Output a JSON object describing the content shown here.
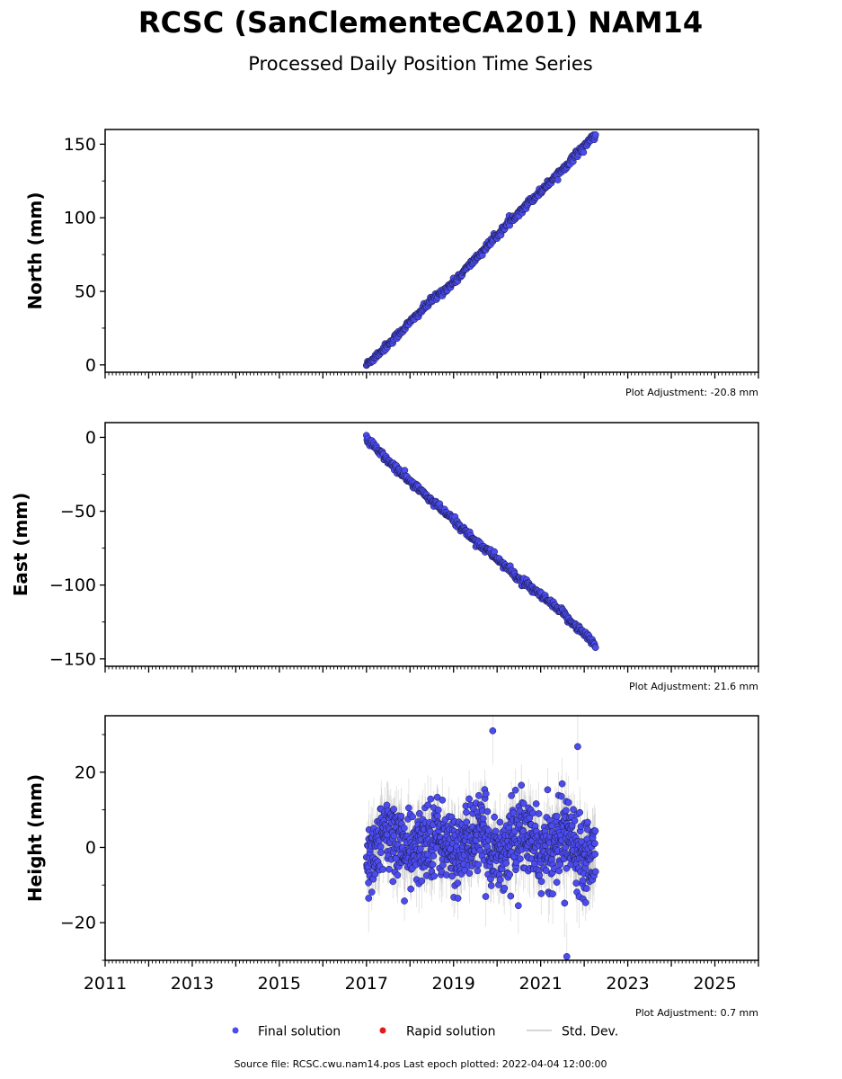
{
  "title": "RCSC (SanClementeCA201) NAM14",
  "subtitle": "Processed Daily Position Time Series",
  "colors": {
    "final": "#4b4bf0",
    "final_edge": "#1a1a40",
    "rapid": "#e31a1c",
    "stddev": "#a0a0a0",
    "axis": "#000000"
  },
  "legend": {
    "placement": "bottom-center",
    "items": [
      {
        "label": "Final solution",
        "kind": "dot-final"
      },
      {
        "label": "Rapid solution",
        "kind": "dot-rapid"
      },
      {
        "label": "Std. Dev.",
        "kind": "line"
      }
    ]
  },
  "footer": "Source file: RCSC.cwu.nam14.pos  Last epoch plotted: 2022-04-04 12:00:00",
  "chart_data": [
    {
      "type": "scatter",
      "ylabel": "North (mm)",
      "xlim": [
        2011,
        2026
      ],
      "ylim": [
        -5,
        160
      ],
      "yticks": [
        0,
        50,
        100,
        150
      ],
      "ytick_labels": [
        "0",
        "50",
        "100",
        "150"
      ],
      "adjustment": "Plot Adjustment: -20.8 mm",
      "series": [
        {
          "label": "Final solution",
          "trend": {
            "x": [
              2017.0,
              2017.5,
              2018.0,
              2018.5,
              2019.0,
              2019.5,
              2020.0,
              2020.5,
              2021.0,
              2021.5,
              2022.0,
              2022.26
            ],
            "y": [
              0,
              14,
              29,
              44,
              56,
              72,
              88,
              104,
              118,
              133,
              149,
              156
            ]
          },
          "noise_mm": 1.2,
          "stddev_mm": 1.5
        }
      ]
    },
    {
      "type": "scatter",
      "ylabel": "East (mm)",
      "xlim": [
        2011,
        2026
      ],
      "ylim": [
        -155,
        10
      ],
      "yticks": [
        0,
        -50,
        -100,
        -150
      ],
      "ytick_labels": [
        "0",
        "−50",
        "−100",
        "−150"
      ],
      "adjustment": "Plot Adjustment: 21.6 mm",
      "series": [
        {
          "label": "Final solution",
          "trend": {
            "x": [
              2017.0,
              2017.5,
              2018.0,
              2018.5,
              2019.0,
              2019.5,
              2020.0,
              2020.5,
              2021.0,
              2021.5,
              2022.0,
              2022.26
            ],
            "y": [
              -1,
              -16,
              -30,
              -43,
              -56,
              -70,
              -82,
              -96,
              -107,
              -119,
              -133,
              -141
            ]
          },
          "noise_mm": 1.3,
          "stddev_mm": 1.5
        }
      ]
    },
    {
      "type": "scatter",
      "ylabel": "Height (mm)",
      "xlim": [
        2011,
        2026
      ],
      "ylim": [
        -30,
        35
      ],
      "yticks": [
        20,
        0,
        -20
      ],
      "ytick_labels": [
        "20",
        "0",
        "−20"
      ],
      "xticks": [
        2011,
        2013,
        2015,
        2017,
        2019,
        2021,
        2023,
        2025
      ],
      "xtick_labels": [
        "2011",
        "2013",
        "2015",
        "2017",
        "2019",
        "2021",
        "2023",
        "2025"
      ],
      "adjustment": "Plot Adjustment: 0.7 mm",
      "series": [
        {
          "label": "Final solution",
          "x_range": [
            2017.0,
            2022.26
          ],
          "center_mm": 1,
          "noise_mm": 5,
          "stddev_mm": 6,
          "outliers": [
            {
              "x": 2019.9,
              "y": 31
            },
            {
              "x": 2021.85,
              "y": 26.8
            },
            {
              "x": 2021.6,
              "y": -29
            },
            {
              "x": 2021.55,
              "y": -14.8
            },
            {
              "x": 2017.05,
              "y": -13.5
            }
          ]
        }
      ]
    }
  ]
}
